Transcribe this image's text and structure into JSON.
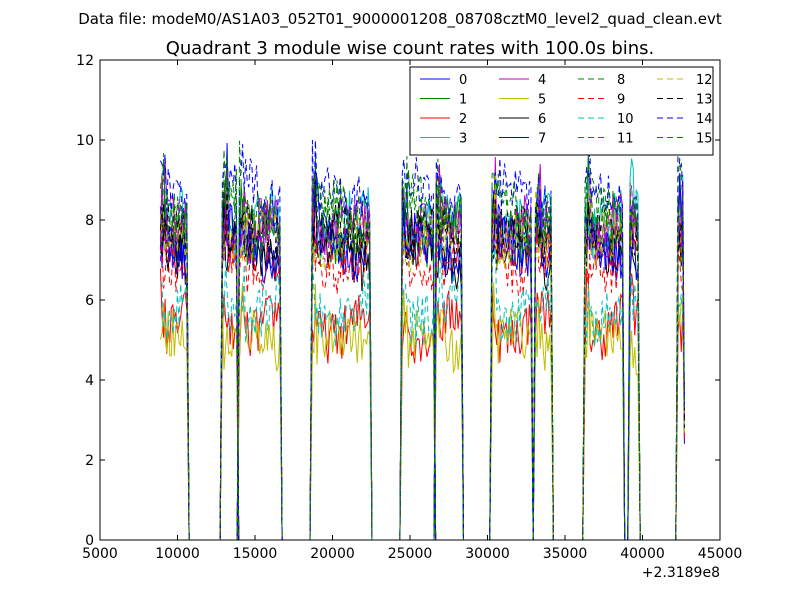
{
  "chart_data": {
    "type": "line",
    "suptitle": "Data file: modeM0/AS1A03_052T01_9000001208_08708cztM0_level2_quad_clean.evt",
    "title": "Quadrant 3 module wise count rates with 100.0s bins.",
    "xlabel": "",
    "ylabel": "",
    "x_offset_label": "+2.3189e8",
    "xlim": [
      5000,
      45000
    ],
    "ylim": [
      0,
      12
    ],
    "xticks": [
      "5000",
      "10000",
      "15000",
      "20000",
      "25000",
      "30000",
      "35000",
      "40000",
      "45000"
    ],
    "yticks": [
      "0",
      "2",
      "4",
      "6",
      "8",
      "10",
      "12"
    ],
    "grid": false,
    "legend_position": "top-right",
    "legend_columns": 4,
    "observation_segments": [
      [
        8900,
        10600
      ],
      [
        12900,
        13800
      ],
      [
        14000,
        16600
      ],
      [
        18700,
        22400
      ],
      [
        24500,
        26500
      ],
      [
        26700,
        28300
      ],
      [
        30300,
        32800
      ],
      [
        33100,
        34100
      ],
      [
        36300,
        38700
      ],
      [
        39200,
        39700
      ],
      [
        42300,
        42600
      ]
    ],
    "series": [
      {
        "name": "0",
        "color": "#0000ff",
        "dash": "solid",
        "mean_rate": 7.6
      },
      {
        "name": "1",
        "color": "#008000",
        "dash": "solid",
        "mean_rate": 7.8
      },
      {
        "name": "2",
        "color": "#ff0000",
        "dash": "solid",
        "mean_rate": 5.4
      },
      {
        "name": "3",
        "color": "#00bfbf",
        "dash": "solid",
        "mean_rate": 7.9
      },
      {
        "name": "4",
        "color": "#bf00bf",
        "dash": "solid",
        "mean_rate": 7.7
      },
      {
        "name": "5",
        "color": "#bfbf00",
        "dash": "solid",
        "mean_rate": 4.9
      },
      {
        "name": "6",
        "color": "#000000",
        "dash": "solid",
        "mean_rate": 7.1
      },
      {
        "name": "7",
        "color": "#0000ff",
        "dash": "solid",
        "mean_rate": 7.3
      },
      {
        "name": "8",
        "color": "#008000",
        "dash": "dashed",
        "mean_rate": 8.1
      },
      {
        "name": "9",
        "color": "#ff0000",
        "dash": "dashed",
        "mean_rate": 7.0
      },
      {
        "name": "10",
        "color": "#00bfbf",
        "dash": "dashed",
        "mean_rate": 5.8
      },
      {
        "name": "11",
        "color": "#bf00bf",
        "dash": "dashed",
        "mean_rate": 7.6
      },
      {
        "name": "12",
        "color": "#bfbf00",
        "dash": "dashed",
        "mean_rate": 7.4
      },
      {
        "name": "13",
        "color": "#000000",
        "dash": "dashed",
        "mean_rate": 7.5
      },
      {
        "name": "14",
        "color": "#0000ff",
        "dash": "dashed",
        "mean_rate": 8.6
      },
      {
        "name": "15",
        "color": "#008000",
        "dash": "dashed",
        "mean_rate": 8.3
      }
    ]
  }
}
